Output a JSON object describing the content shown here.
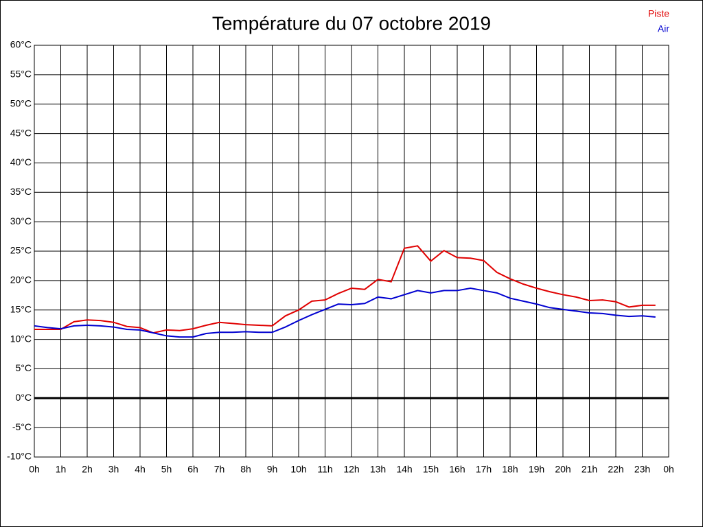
{
  "chart_data": {
    "type": "line",
    "title": "Température du 07 octobre 2019",
    "x": [
      0,
      0.5,
      1,
      1.5,
      2,
      2.5,
      3,
      3.5,
      4,
      4.5,
      5,
      5.5,
      6,
      6.5,
      7,
      7.5,
      8,
      8.5,
      9,
      9.5,
      10,
      10.5,
      11,
      11.5,
      12,
      12.5,
      13,
      13.5,
      14,
      14.5,
      15,
      15.5,
      16,
      16.5,
      17,
      17.5,
      18,
      18.5,
      19,
      19.5,
      20,
      20.5,
      21,
      21.5,
      22,
      22.5,
      23,
      23.5
    ],
    "series": [
      {
        "name": "Piste",
        "color": "#e00000",
        "values": [
          11.7,
          11.7,
          11.7,
          13.0,
          13.3,
          13.2,
          12.9,
          12.2,
          12.0,
          11.1,
          11.6,
          11.5,
          11.8,
          12.4,
          12.9,
          12.7,
          12.5,
          12.4,
          12.3,
          14.0,
          15.0,
          16.5,
          16.7,
          17.8,
          18.7,
          18.5,
          20.2,
          19.8,
          25.5,
          25.9,
          23.3,
          25.1,
          23.9,
          23.8,
          23.4,
          21.4,
          20.3,
          19.4,
          18.7,
          18.1,
          17.6,
          17.2,
          16.6,
          16.7,
          16.4,
          15.5,
          15.8,
          15.8
        ]
      },
      {
        "name": "Air",
        "color": "#0000d0",
        "values": [
          12.3,
          12.0,
          11.8,
          12.3,
          12.4,
          12.3,
          12.1,
          11.7,
          11.6,
          11.1,
          10.6,
          10.4,
          10.4,
          11.0,
          11.2,
          11.2,
          11.3,
          11.2,
          11.2,
          12.1,
          13.2,
          14.2,
          15.1,
          16.0,
          15.9,
          16.1,
          17.2,
          16.9,
          17.6,
          18.3,
          17.9,
          18.3,
          18.3,
          18.7,
          18.3,
          17.9,
          17.0,
          16.5,
          16.0,
          15.4,
          15.1,
          14.8,
          14.5,
          14.4,
          14.1,
          13.9,
          14.0,
          13.8
        ]
      }
    ],
    "xlim": [
      0,
      24
    ],
    "xticks": [
      {
        "value": 0,
        "label": "0h"
      },
      {
        "value": 1,
        "label": "1h"
      },
      {
        "value": 2,
        "label": "2h"
      },
      {
        "value": 3,
        "label": "3h"
      },
      {
        "value": 4,
        "label": "4h"
      },
      {
        "value": 5,
        "label": "5h"
      },
      {
        "value": 6,
        "label": "6h"
      },
      {
        "value": 7,
        "label": "7h"
      },
      {
        "value": 8,
        "label": "8h"
      },
      {
        "value": 9,
        "label": "9h"
      },
      {
        "value": 10,
        "label": "10h"
      },
      {
        "value": 11,
        "label": "11h"
      },
      {
        "value": 12,
        "label": "12h"
      },
      {
        "value": 13,
        "label": "13h"
      },
      {
        "value": 14,
        "label": "14h"
      },
      {
        "value": 15,
        "label": "15h"
      },
      {
        "value": 16,
        "label": "16h"
      },
      {
        "value": 17,
        "label": "17h"
      },
      {
        "value": 18,
        "label": "18h"
      },
      {
        "value": 19,
        "label": "19h"
      },
      {
        "value": 20,
        "label": "20h"
      },
      {
        "value": 21,
        "label": "21h"
      },
      {
        "value": 22,
        "label": "22h"
      },
      {
        "value": 23,
        "label": "23h"
      },
      {
        "value": 24,
        "label": "0h"
      }
    ],
    "ylim": [
      -10,
      60
    ],
    "yticks": [
      {
        "value": -10,
        "label": "-10°C"
      },
      {
        "value": -5,
        "label": "-5°C"
      },
      {
        "value": 0,
        "label": "0°C"
      },
      {
        "value": 5,
        "label": "5°C"
      },
      {
        "value": 10,
        "label": "10°C"
      },
      {
        "value": 15,
        "label": "15°C"
      },
      {
        "value": 20,
        "label": "20°C"
      },
      {
        "value": 25,
        "label": "25°C"
      },
      {
        "value": 30,
        "label": "30°C"
      },
      {
        "value": 35,
        "label": "35°C"
      },
      {
        "value": 40,
        "label": "40°C"
      },
      {
        "value": 45,
        "label": "45°C"
      },
      {
        "value": 50,
        "label": "50°C"
      },
      {
        "value": 55,
        "label": "55°C"
      },
      {
        "value": 60,
        "label": "60°C"
      }
    ],
    "grid": true,
    "legend": "top-right"
  }
}
